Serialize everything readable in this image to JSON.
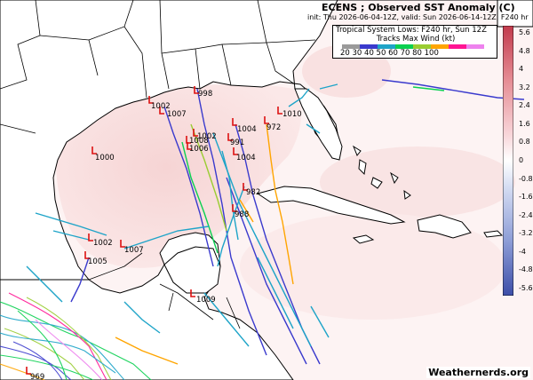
{
  "title": "ECENS ; Observed SST Anomaly (C)",
  "init_valid": "init: Thu 2026-06-04-12Z, valid: Sun 2026-06-14-12Z, F240 hr",
  "tropical_title": "Tropical System Lows: F240 hr, Sun 12Z",
  "legend": {
    "title": "Tracks Max Wind (kt)",
    "values": "20 30 40 50 60 70 80 100",
    "colors": [
      "#9a9a9a",
      "#3a3acd",
      "#1ea4c8",
      "#0ad050",
      "#9acd32",
      "#ffa500",
      "#ff1493",
      "#ee82ee"
    ]
  },
  "colorbar": {
    "ticks": [
      "5.6",
      "4.8",
      "4",
      "3.2",
      "2.4",
      "1.6",
      "0.8",
      "0",
      "-0.8",
      "-1.6",
      "-2.4",
      "-3.2",
      "-4",
      "-4.8",
      "-5.6"
    ],
    "top_color": "#c0304a",
    "bottom_color": "#4a5ab0"
  },
  "pressure_labels": [
    {
      "t": "998"
    },
    {
      "t": "1002"
    },
    {
      "t": "1007"
    },
    {
      "t": "1010"
    },
    {
      "t": "972"
    },
    {
      "t": "1004"
    },
    {
      "t": "1002"
    },
    {
      "t": "1008"
    },
    {
      "t": "991"
    },
    {
      "t": "1006"
    },
    {
      "t": "1004"
    },
    {
      "t": "1000"
    },
    {
      "t": "982"
    },
    {
      "t": "988"
    },
    {
      "t": "1002"
    },
    {
      "t": "1007"
    },
    {
      "t": "1005"
    },
    {
      "t": "1009"
    },
    {
      "t": "969"
    }
  ],
  "credit": "Weathernerds.org"
}
